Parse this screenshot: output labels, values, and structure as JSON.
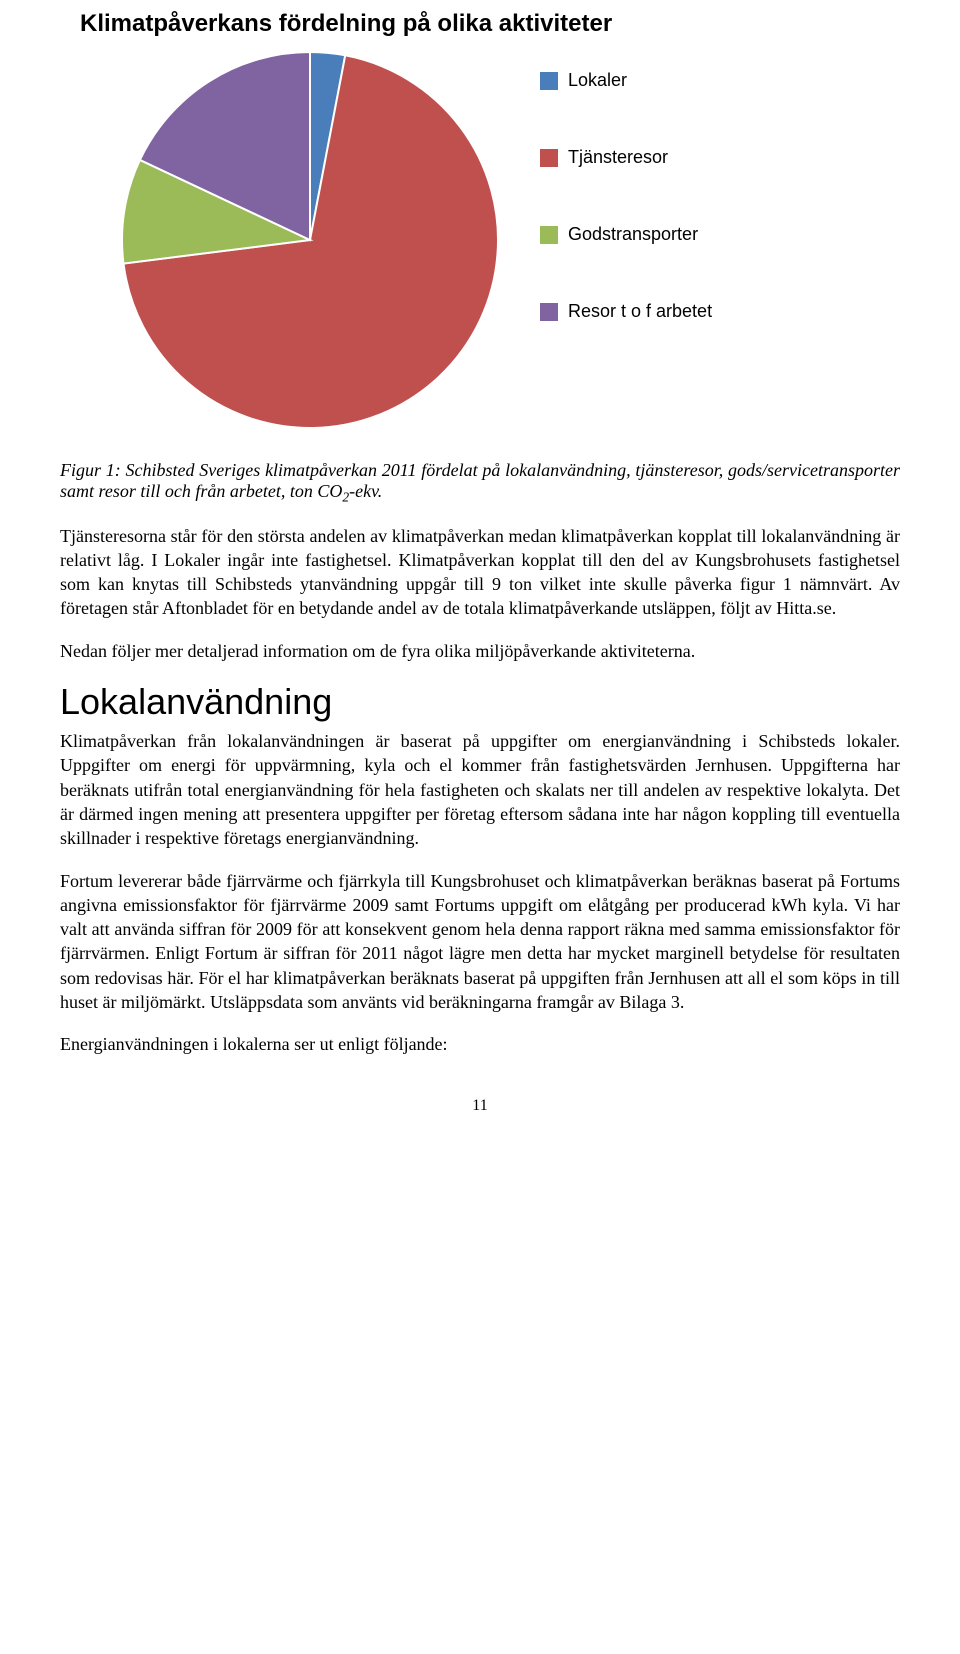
{
  "chart": {
    "type": "pie",
    "title": "Klimatpåverkans fördelning på olika aktiviteter",
    "title_fontsize": 24,
    "diameter": 380,
    "slices": [
      {
        "label": "Lokaler",
        "value": 3,
        "color": "#4a7ebb"
      },
      {
        "label": "Tjänsteresor",
        "value": 70,
        "color": "#c0504d"
      },
      {
        "label": "Godstransporter",
        "value": 9,
        "color": "#9bbb59"
      },
      {
        "label": "Resor t o f arbetet",
        "value": 18,
        "color": "#8064a2"
      }
    ],
    "start_angle_deg": 0,
    "stroke_color": "#ffffff",
    "stroke_width": 2,
    "legend_fontsize": 18,
    "legend_font": "Arial"
  },
  "caption": {
    "prefix": "Figur 1: Schibsted Sveriges klimatpåverkan 2011 fördelat på lokalanvändning, tjänsteresor, gods/servicetransporter samt resor till och från arbetet, ton CO",
    "sub": "2",
    "suffix": "-ekv."
  },
  "paragraphs": {
    "p1": "Tjänsteresorna står för den största andelen av klimatpåverkan medan klimatpåverkan kopplat till lokalanvändning är relativt låg. I Lokaler ingår inte fastighetsel. Klimatpåverkan kopplat till den del av Kungsbrohusets fastighetsel som kan knytas till Schibsteds ytanvändning uppgår till 9 ton vilket inte skulle påverka figur 1 nämnvärt. Av företagen står Aftonbladet för en betydande andel av de totala klimatpåverkande utsläppen, följt av Hitta.se.",
    "p2": "Nedan följer mer detaljerad information om de fyra olika miljöpåverkande aktiviteterna.",
    "p3": "Klimatpåverkan från lokalanvändningen är baserat på uppgifter om energianvändning i Schibsteds lokaler. Uppgifter om energi för uppvärmning, kyla och el kommer från fastighetsvärden Jernhusen. Uppgifterna har beräknats utifrån total energianvändning för hela fastigheten och skalats ner till andelen av respektive lokalyta. Det är därmed ingen mening att presentera uppgifter per företag eftersom sådana inte har någon koppling till eventuella skillnader i respektive företags energianvändning.",
    "p4": "Fortum levererar både fjärrvärme och fjärrkyla till Kungsbrohuset och klimatpåverkan beräknas baserat på Fortums angivna emissionsfaktor för fjärrvärme 2009 samt Fortums uppgift om elåtgång per producerad kWh kyla. Vi har valt att använda siffran för 2009 för att konsekvent genom hela denna rapport räkna med samma emissionsfaktor för fjärrvärmen. Enligt Fortum är siffran för 2011 något lägre men detta har mycket marginell betydelse för resultaten som redovisas här. För el har klimatpåverkan beräknats baserat på uppgiften från Jernhusen att all el som köps in till huset är miljömärkt. Utsläppsdata som använts vid beräkningarna framgår av Bilaga 3.",
    "p5": "Energianvändningen i lokalerna ser ut enligt följande:"
  },
  "section_heading": "Lokalanvändning",
  "page_number": "11"
}
